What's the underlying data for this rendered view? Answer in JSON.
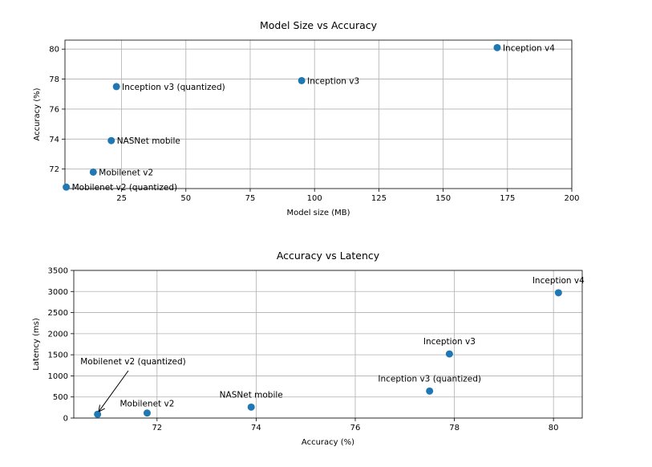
{
  "chart_data": [
    {
      "type": "scatter",
      "title": "Model Size vs Accuracy",
      "xlabel": "Model size (MB)",
      "ylabel": "Accuracy (%)",
      "xlim": [
        3,
        200
      ],
      "ylim": [
        70.7,
        80.6
      ],
      "xticks": [
        25,
        50,
        75,
        100,
        125,
        150,
        175,
        200
      ],
      "yticks": [
        72,
        74,
        76,
        78,
        80
      ],
      "grid": true,
      "marker_color": "#1f77b4",
      "points": [
        {
          "label": "Mobilenet v2 (quantized)",
          "x": 3.5,
          "y": 70.8
        },
        {
          "label": "Mobilenet v2",
          "x": 14,
          "y": 71.8
        },
        {
          "label": "NASNet mobile",
          "x": 21,
          "y": 73.9
        },
        {
          "label": "Inception v3 (quantized)",
          "x": 23,
          "y": 77.5
        },
        {
          "label": "Inception v3",
          "x": 95,
          "y": 77.9
        },
        {
          "label": "Inception v4",
          "x": 171,
          "y": 80.1
        }
      ]
    },
    {
      "type": "scatter",
      "title": "Accuracy vs Latency",
      "xlabel": "Accuracy (%)",
      "ylabel": "Latency (ms)",
      "xlim": [
        70.32,
        80.58
      ],
      "ylim": [
        0,
        3500
      ],
      "xticks": [
        72,
        74,
        76,
        78,
        80
      ],
      "yticks": [
        0,
        500,
        1000,
        1500,
        2000,
        2500,
        3000,
        3500
      ],
      "grid": true,
      "marker_color": "#1f77b4",
      "points": [
        {
          "label": "Mobilenet v2 (quantized)",
          "x": 70.8,
          "y": 90
        },
        {
          "label": "Mobilenet v2",
          "x": 71.8,
          "y": 120
        },
        {
          "label": "NASNet mobile",
          "x": 73.9,
          "y": 260
        },
        {
          "label": "Inception v3 (quantized)",
          "x": 77.5,
          "y": 640
        },
        {
          "label": "Inception v3",
          "x": 77.9,
          "y": 1520
        },
        {
          "label": "Inception v4",
          "x": 80.1,
          "y": 2970
        }
      ]
    }
  ]
}
